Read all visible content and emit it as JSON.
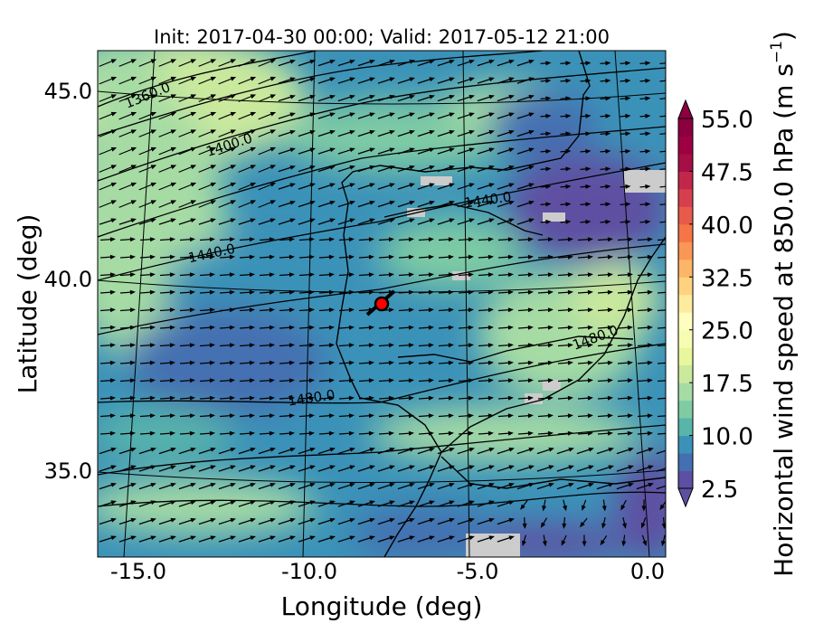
{
  "chart_data": {
    "type": "heatmap",
    "title": "Init: 2017-04-30 00:00; Valid: 2017-05-12 21:00",
    "xlabel": "Longitude (deg)",
    "ylabel": "Latitude (deg)",
    "xlim": [
      -16,
      0.3
    ],
    "ylim": [
      32.7,
      46
    ],
    "x_ticks": [
      "-15.0",
      "-10.0",
      "-5.0",
      "0.0"
    ],
    "y_ticks": [
      "45.0",
      "40.0",
      "35.0"
    ],
    "grid": true,
    "colorbar": {
      "label": "Horizontal wind speed at 850.0 hPa (m s",
      "label_exponent": "−1",
      "label_close": ")",
      "min": 2.5,
      "max": 55.0,
      "step": 2.5,
      "extend": "both",
      "colormap": "Spectral_r",
      "ticks": [
        "55.0",
        "47.5",
        "40.0",
        "32.5",
        "25.0",
        "17.5",
        "10.0",
        "2.5"
      ],
      "colors": [
        "#5e4fa2",
        "#4470b1",
        "#3b92b8",
        "#59b4aa",
        "#7ecba4",
        "#a6dba4",
        "#cae99d",
        "#e8f69c",
        "#f7fcb3",
        "#fffebe",
        "#feeb9d",
        "#fed27f",
        "#fdb567",
        "#fa9656",
        "#f57547",
        "#e85b4a",
        "#d6404e",
        "#c1274a",
        "#a50f46",
        "#9e0142",
        "#8c0040"
      ]
    },
    "contours": {
      "labels": [
        "1360.0",
        "1400.0",
        "1440.0",
        "1440.0",
        "1480.0",
        "1480.0"
      ]
    },
    "marker": {
      "lon": -7.7,
      "lat": 39.3,
      "color": "#ff0000"
    },
    "missing_color": "#cccccc"
  }
}
